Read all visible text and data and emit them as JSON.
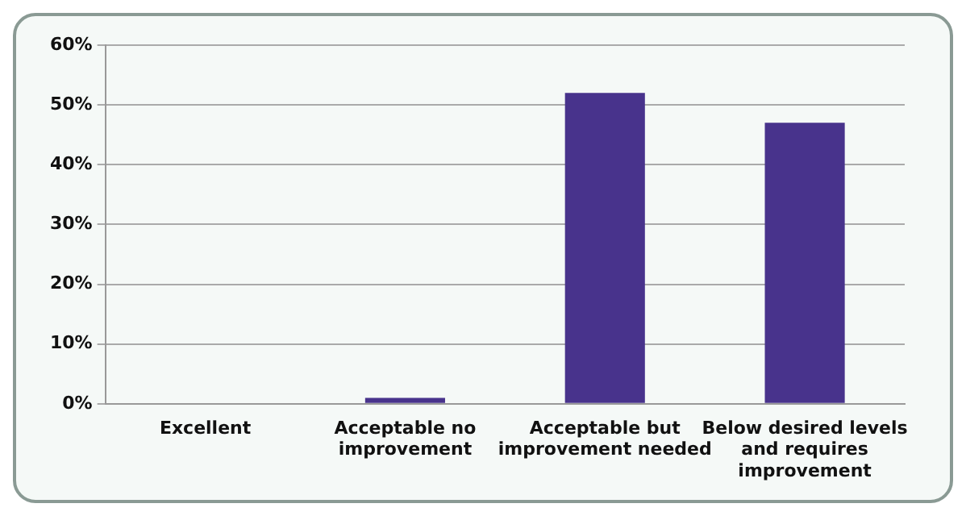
{
  "chart_data": {
    "type": "bar",
    "categories": [
      "Excellent",
      "Acceptable no improvement",
      "Acceptable but improvement needed",
      "Below desired levels and requires improvement"
    ],
    "values": [
      0,
      1,
      52,
      47
    ],
    "color": "#48338c",
    "ylim": [
      0,
      60
    ],
    "yticks": [
      {
        "value": 0,
        "label": "0%"
      },
      {
        "value": 10,
        "label": "10%"
      },
      {
        "value": 20,
        "label": "20%"
      },
      {
        "value": 30,
        "label": "30%"
      },
      {
        "value": 40,
        "label": "40%"
      },
      {
        "value": 50,
        "label": "50%"
      },
      {
        "value": 60,
        "label": "60%"
      }
    ],
    "grid": "y",
    "legend": false
  }
}
